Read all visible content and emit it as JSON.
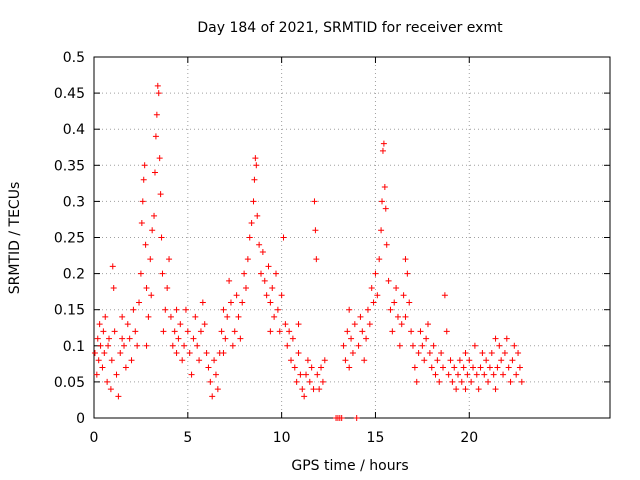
{
  "chart_data": {
    "type": "scatter",
    "title": "Day 184 of 2021, SRMTID for receiver exmt",
    "xlabel": "GPS time / hours",
    "ylabel": "SRMTID / TECUs",
    "xlim": [
      0,
      27.5
    ],
    "ylim": [
      0,
      0.5
    ],
    "xticks": [
      0,
      5,
      10,
      15,
      20
    ],
    "xtick_labels": [
      "0",
      "5",
      "10",
      "15",
      "20"
    ],
    "yticks": [
      0,
      0.05,
      0.1,
      0.15,
      0.2,
      0.25,
      0.3,
      0.35,
      0.4,
      0.45,
      0.5
    ],
    "ytick_labels": [
      "0",
      "0.05",
      "0.1",
      "0.15",
      "0.2",
      "0.25",
      "0.3",
      "0.35",
      "0.4",
      "0.45",
      "0.5"
    ],
    "grid": true,
    "marker": "+",
    "color": "#ff0000",
    "series": [
      {
        "name": "SRMTID",
        "points": [
          [
            0.05,
            0.09
          ],
          [
            0.15,
            0.06
          ],
          [
            0.2,
            0.11
          ],
          [
            0.25,
            0.08
          ],
          [
            0.3,
            0.13
          ],
          [
            0.35,
            0.1
          ],
          [
            0.45,
            0.07
          ],
          [
            0.5,
            0.12
          ],
          [
            0.55,
            0.09
          ],
          [
            0.6,
            0.14
          ],
          [
            0.7,
            0.05
          ],
          [
            0.75,
            0.1
          ],
          [
            0.8,
            0.11
          ],
          [
            0.9,
            0.04
          ],
          [
            0.95,
            0.08
          ],
          [
            1.0,
            0.21
          ],
          [
            1.05,
            0.18
          ],
          [
            1.1,
            0.12
          ],
          [
            1.2,
            0.06
          ],
          [
            1.3,
            0.03
          ],
          [
            1.4,
            0.09
          ],
          [
            1.5,
            0.14
          ],
          [
            1.6,
            0.1
          ],
          [
            1.7,
            0.07
          ],
          [
            1.8,
            0.13
          ],
          [
            1.9,
            0.11
          ],
          [
            2.0,
            0.08
          ],
          [
            2.1,
            0.15
          ],
          [
            2.2,
            0.12
          ],
          [
            2.3,
            0.1
          ],
          [
            2.4,
            0.16
          ],
          [
            2.5,
            0.2
          ],
          [
            2.55,
            0.27
          ],
          [
            2.6,
            0.3
          ],
          [
            2.65,
            0.33
          ],
          [
            2.7,
            0.35
          ],
          [
            2.75,
            0.24
          ],
          [
            2.8,
            0.18
          ],
          [
            2.9,
            0.14
          ],
          [
            3.0,
            0.22
          ],
          [
            3.05,
            0.17
          ],
          [
            3.1,
            0.26
          ],
          [
            3.2,
            0.28
          ],
          [
            3.25,
            0.34
          ],
          [
            3.3,
            0.39
          ],
          [
            3.35,
            0.42
          ],
          [
            3.4,
            0.46
          ],
          [
            3.45,
            0.45
          ],
          [
            3.5,
            0.36
          ],
          [
            3.55,
            0.31
          ],
          [
            3.6,
            0.25
          ],
          [
            3.65,
            0.2
          ],
          [
            3.7,
            0.12
          ],
          [
            3.8,
            0.15
          ],
          [
            3.9,
            0.18
          ],
          [
            4.0,
            0.22
          ],
          [
            4.1,
            0.14
          ],
          [
            4.2,
            0.1
          ],
          [
            4.3,
            0.12
          ],
          [
            4.4,
            0.09
          ],
          [
            4.5,
            0.11
          ],
          [
            4.6,
            0.13
          ],
          [
            4.7,
            0.08
          ],
          [
            4.8,
            0.1
          ],
          [
            4.9,
            0.15
          ],
          [
            5.0,
            0.12
          ],
          [
            5.1,
            0.09
          ],
          [
            5.2,
            0.06
          ],
          [
            5.3,
            0.11
          ],
          [
            5.4,
            0.14
          ],
          [
            5.5,
            0.1
          ],
          [
            5.6,
            0.08
          ],
          [
            5.7,
            0.12
          ],
          [
            5.8,
            0.16
          ],
          [
            5.9,
            0.13
          ],
          [
            6.0,
            0.09
          ],
          [
            6.1,
            0.07
          ],
          [
            6.2,
            0.05
          ],
          [
            6.3,
            0.03
          ],
          [
            6.4,
            0.08
          ],
          [
            6.5,
            0.06
          ],
          [
            6.6,
            0.04
          ],
          [
            6.7,
            0.09
          ],
          [
            6.8,
            0.12
          ],
          [
            6.9,
            0.15
          ],
          [
            7.0,
            0.11
          ],
          [
            7.1,
            0.14
          ],
          [
            7.2,
            0.19
          ],
          [
            7.3,
            0.16
          ],
          [
            7.4,
            0.1
          ],
          [
            7.5,
            0.12
          ],
          [
            7.6,
            0.17
          ],
          [
            7.7,
            0.14
          ],
          [
            7.8,
            0.11
          ],
          [
            7.9,
            0.16
          ],
          [
            8.0,
            0.2
          ],
          [
            8.1,
            0.18
          ],
          [
            8.2,
            0.22
          ],
          [
            8.3,
            0.25
          ],
          [
            8.4,
            0.27
          ],
          [
            8.5,
            0.3
          ],
          [
            8.55,
            0.33
          ],
          [
            8.6,
            0.36
          ],
          [
            8.65,
            0.35
          ],
          [
            8.7,
            0.28
          ],
          [
            8.8,
            0.24
          ],
          [
            8.9,
            0.2
          ],
          [
            9.0,
            0.23
          ],
          [
            9.1,
            0.19
          ],
          [
            9.2,
            0.17
          ],
          [
            9.3,
            0.21
          ],
          [
            9.4,
            0.16
          ],
          [
            9.5,
            0.18
          ],
          [
            9.6,
            0.14
          ],
          [
            9.7,
            0.2
          ],
          [
            9.8,
            0.15
          ],
          [
            9.9,
            0.12
          ],
          [
            10.0,
            0.17
          ],
          [
            10.1,
            0.25
          ],
          [
            10.2,
            0.13
          ],
          [
            10.3,
            0.1
          ],
          [
            10.4,
            0.12
          ],
          [
            10.5,
            0.08
          ],
          [
            10.6,
            0.11
          ],
          [
            10.7,
            0.07
          ],
          [
            10.8,
            0.05
          ],
          [
            10.9,
            0.09
          ],
          [
            11.0,
            0.06
          ],
          [
            11.1,
            0.04
          ],
          [
            11.2,
            0.03
          ],
          [
            11.3,
            0.06
          ],
          [
            11.4,
            0.08
          ],
          [
            11.5,
            0.05
          ],
          [
            11.6,
            0.07
          ],
          [
            11.7,
            0.04
          ],
          [
            11.75,
            0.3
          ],
          [
            11.8,
            0.26
          ],
          [
            11.85,
            0.22
          ],
          [
            11.9,
            0.06
          ],
          [
            12.0,
            0.04
          ],
          [
            12.1,
            0.07
          ],
          [
            12.2,
            0.05
          ],
          [
            12.3,
            0.08
          ],
          [
            12.9,
            0.0
          ],
          [
            13.0,
            0.0
          ],
          [
            13.1,
            0.0
          ],
          [
            13.2,
            0.0
          ],
          [
            13.3,
            0.1
          ],
          [
            13.4,
            0.08
          ],
          [
            13.5,
            0.12
          ],
          [
            13.6,
            0.15
          ],
          [
            13.7,
            0.11
          ],
          [
            13.8,
            0.09
          ],
          [
            13.9,
            0.13
          ],
          [
            14.0,
            0.0
          ],
          [
            14.1,
            0.1
          ],
          [
            14.2,
            0.14
          ],
          [
            14.3,
            0.12
          ],
          [
            14.4,
            0.08
          ],
          [
            14.5,
            0.11
          ],
          [
            14.6,
            0.15
          ],
          [
            14.7,
            0.13
          ],
          [
            14.8,
            0.18
          ],
          [
            14.9,
            0.16
          ],
          [
            15.0,
            0.2
          ],
          [
            15.1,
            0.17
          ],
          [
            15.2,
            0.22
          ],
          [
            15.3,
            0.26
          ],
          [
            15.35,
            0.3
          ],
          [
            15.4,
            0.37
          ],
          [
            15.45,
            0.38
          ],
          [
            15.5,
            0.32
          ],
          [
            15.55,
            0.29
          ],
          [
            15.6,
            0.24
          ],
          [
            15.7,
            0.19
          ],
          [
            15.8,
            0.15
          ],
          [
            15.9,
            0.12
          ],
          [
            16.0,
            0.16
          ],
          [
            16.1,
            0.18
          ],
          [
            16.2,
            0.14
          ],
          [
            16.3,
            0.1
          ],
          [
            16.4,
            0.13
          ],
          [
            16.5,
            0.17
          ],
          [
            16.6,
            0.22
          ],
          [
            16.7,
            0.2
          ],
          [
            16.8,
            0.16
          ],
          [
            16.9,
            0.12
          ],
          [
            17.0,
            0.1
          ],
          [
            17.1,
            0.07
          ],
          [
            17.2,
            0.05
          ],
          [
            17.3,
            0.09
          ],
          [
            17.4,
            0.12
          ],
          [
            17.5,
            0.1
          ],
          [
            17.6,
            0.08
          ],
          [
            17.7,
            0.11
          ],
          [
            17.8,
            0.13
          ],
          [
            17.9,
            0.09
          ],
          [
            18.0,
            0.07
          ],
          [
            18.1,
            0.1
          ],
          [
            18.2,
            0.06
          ],
          [
            18.3,
            0.08
          ],
          [
            18.4,
            0.05
          ],
          [
            18.5,
            0.09
          ],
          [
            18.6,
            0.07
          ],
          [
            18.7,
            0.17
          ],
          [
            18.8,
            0.12
          ],
          [
            18.9,
            0.06
          ],
          [
            19.0,
            0.08
          ],
          [
            19.1,
            0.05
          ],
          [
            19.2,
            0.07
          ],
          [
            19.3,
            0.04
          ],
          [
            19.4,
            0.06
          ],
          [
            19.5,
            0.08
          ],
          [
            19.6,
            0.05
          ],
          [
            19.7,
            0.07
          ],
          [
            19.8,
            0.04
          ],
          [
            19.9,
            0.06
          ],
          [
            20.0,
            0.08
          ],
          [
            20.1,
            0.05
          ],
          [
            20.2,
            0.07
          ],
          [
            20.3,
            0.1
          ],
          [
            20.4,
            0.06
          ],
          [
            20.5,
            0.04
          ],
          [
            20.6,
            0.07
          ],
          [
            20.7,
            0.09
          ],
          [
            20.8,
            0.06
          ],
          [
            20.9,
            0.08
          ],
          [
            21.0,
            0.05
          ],
          [
            21.1,
            0.07
          ],
          [
            21.2,
            0.09
          ],
          [
            21.3,
            0.06
          ],
          [
            21.4,
            0.04
          ],
          [
            21.5,
            0.07
          ],
          [
            21.6,
            0.1
          ],
          [
            21.7,
            0.08
          ],
          [
            21.8,
            0.06
          ],
          [
            21.9,
            0.09
          ],
          [
            22.0,
            0.11
          ],
          [
            22.1,
            0.07
          ],
          [
            22.2,
            0.05
          ],
          [
            22.3,
            0.08
          ],
          [
            22.4,
            0.1
          ],
          [
            22.5,
            0.06
          ],
          [
            22.6,
            0.09
          ],
          [
            22.7,
            0.07
          ],
          [
            22.8,
            0.05
          ],
          [
            1.5,
            0.11
          ],
          [
            2.8,
            0.1
          ],
          [
            4.4,
            0.15
          ],
          [
            6.9,
            0.09
          ],
          [
            9.4,
            0.12
          ],
          [
            10.9,
            0.13
          ],
          [
            13.6,
            0.07
          ],
          [
            16.6,
            0.14
          ],
          [
            19.8,
            0.09
          ],
          [
            21.4,
            0.11
          ]
        ]
      }
    ]
  }
}
